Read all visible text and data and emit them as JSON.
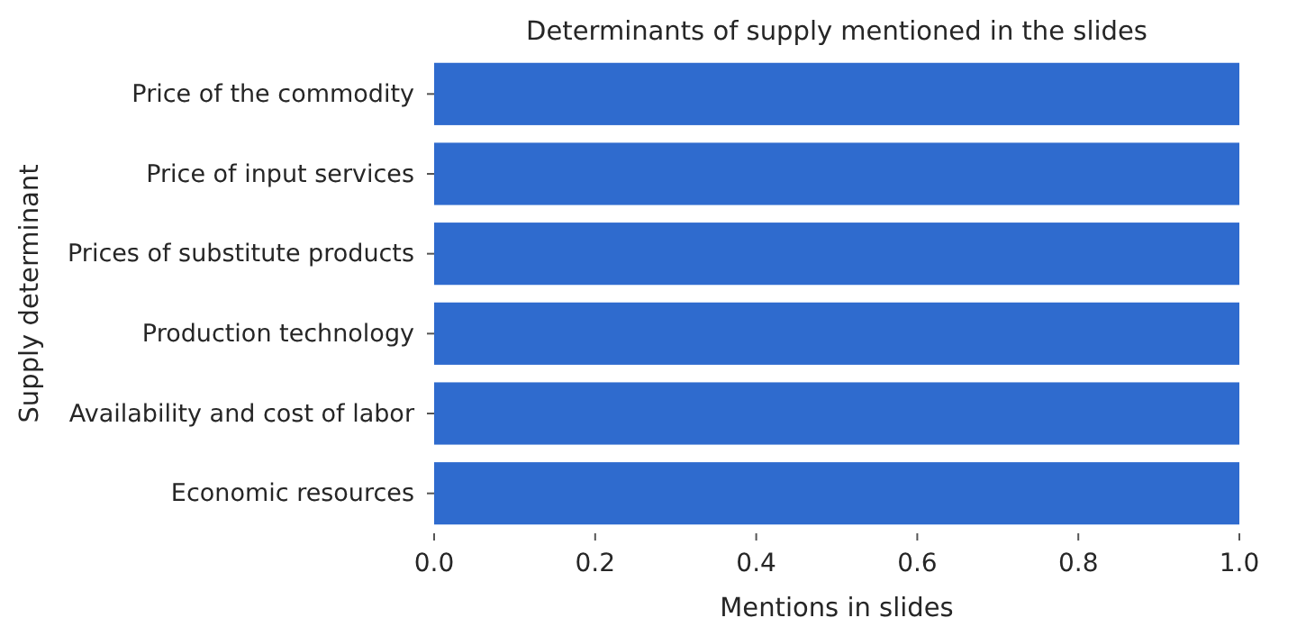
{
  "chart_data": {
    "type": "bar",
    "orientation": "horizontal",
    "title": "Determinants of supply mentioned in the slides",
    "xlabel": "Mentions in slides",
    "ylabel": "Supply determinant",
    "categories": [
      "Price of the commodity",
      "Price of input services",
      "Prices of substitute products",
      "Production technology",
      "Availability and cost of labor",
      "Economic resources"
    ],
    "values": [
      1,
      1,
      1,
      1,
      1,
      1
    ],
    "color": "#2f6bce",
    "xlim": [
      0,
      1
    ],
    "xticks": [
      {
        "value": 0,
        "label": "0.0"
      },
      {
        "value": 0.2,
        "label": "0.2"
      },
      {
        "value": 0.4,
        "label": "0.4"
      },
      {
        "value": 0.6,
        "label": "0.6"
      },
      {
        "value": 0.8,
        "label": "0.8"
      },
      {
        "value": 1,
        "label": "1.0"
      }
    ],
    "grid": false
  }
}
